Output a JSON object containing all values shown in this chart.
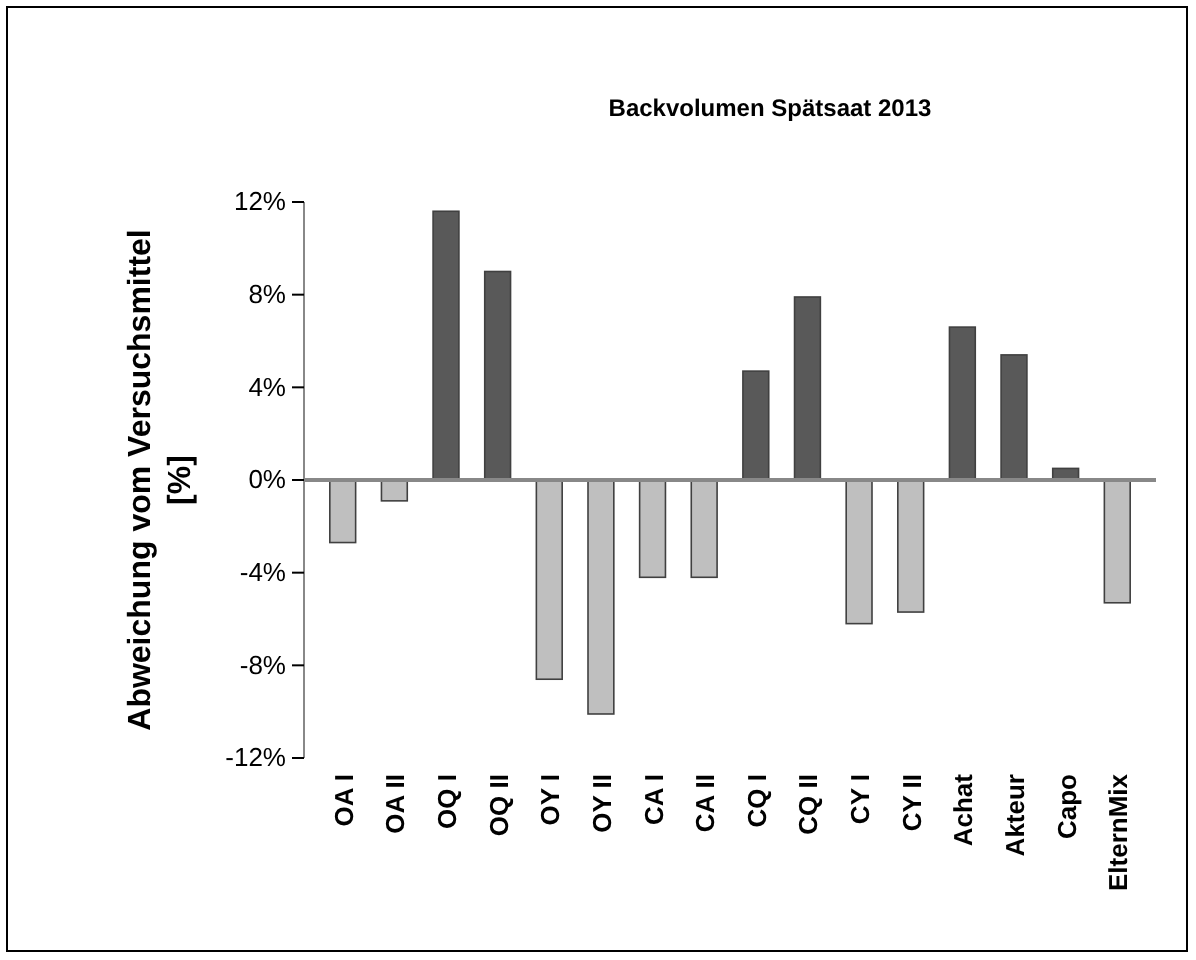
{
  "chart_data": {
    "type": "bar",
    "title": "Backvolumen Spätsaat 2013",
    "ylabel": "Abweichung vom Versuchsmittel [%]",
    "categories": [
      "OA I",
      "OA II",
      "OQ I",
      "OQ II",
      "OY I",
      "OY II",
      "CA I",
      "CA II",
      "CQ I",
      "CQ II",
      "CY I",
      "CY II",
      "Achat",
      "Akteur",
      "Capo",
      "ElternMix"
    ],
    "values": [
      -2.7,
      -0.9,
      11.6,
      9.0,
      -8.6,
      -10.1,
      -4.2,
      -4.2,
      4.7,
      7.9,
      -6.2,
      -5.7,
      6.6,
      5.4,
      0.5,
      -5.3
    ],
    "colors": [
      "#bfbfbf",
      "#bfbfbf",
      "#595959",
      "#595959",
      "#bfbfbf",
      "#bfbfbf",
      "#bfbfbf",
      "#bfbfbf",
      "#595959",
      "#595959",
      "#bfbfbf",
      "#bfbfbf",
      "#595959",
      "#595959",
      "#595959",
      "#bfbfbf"
    ],
    "ylim": [
      -12,
      12
    ],
    "yticks": [
      {
        "value": -12,
        "label": "-12%"
      },
      {
        "value": -8,
        "label": "-8%"
      },
      {
        "value": -4,
        "label": "-4%"
      },
      {
        "value": 0,
        "label": "0%"
      },
      {
        "value": 4,
        "label": "4%"
      },
      {
        "value": 8,
        "label": "8%"
      },
      {
        "value": 12,
        "label": "12%"
      }
    ],
    "line_style": "solid"
  }
}
